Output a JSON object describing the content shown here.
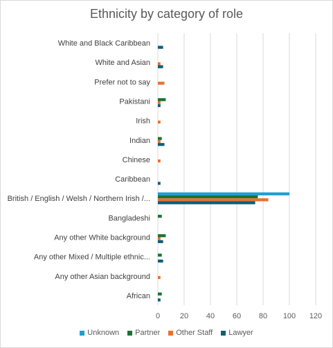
{
  "chart_data": {
    "type": "bar",
    "orientation": "horizontal",
    "title": "Ethnicity by category of role",
    "categories": [
      "White and Black Caribbean",
      "White and Asian",
      "Prefer not to say",
      "Pakistani",
      "Irish",
      "Indian",
      "Chinese",
      "Caribbean",
      "British / English / Welsh / Northern Irish /...",
      "Bangladeshi",
      "Any other White background",
      "Any other Mixed / Multiple ethnic...",
      "Any other Asian background",
      "African"
    ],
    "series": [
      {
        "name": "Unknown",
        "color": "#1f9ed1",
        "values": [
          0,
          0,
          0,
          0,
          0,
          0,
          0,
          0,
          100,
          0,
          0,
          0,
          0,
          0
        ]
      },
      {
        "name": "Partner",
        "color": "#1a7334",
        "values": [
          0,
          0,
          0,
          6,
          0,
          3,
          0,
          0,
          76,
          3,
          6,
          3,
          0,
          3
        ]
      },
      {
        "name": "Other Staff",
        "color": "#e97132",
        "values": [
          0,
          2,
          5,
          2,
          2,
          2,
          2,
          0,
          84,
          0,
          2,
          0,
          2,
          0
        ]
      },
      {
        "name": "Lawyer",
        "color": "#0f5e7a",
        "values": [
          4,
          4,
          0,
          2,
          0,
          5,
          0,
          2,
          74,
          0,
          4,
          4,
          0,
          2
        ]
      }
    ],
    "xlim": [
      0,
      120
    ],
    "xticks": [
      0,
      20,
      40,
      60,
      80,
      100,
      120
    ],
    "grid": "vertical",
    "legend": "bottom"
  }
}
